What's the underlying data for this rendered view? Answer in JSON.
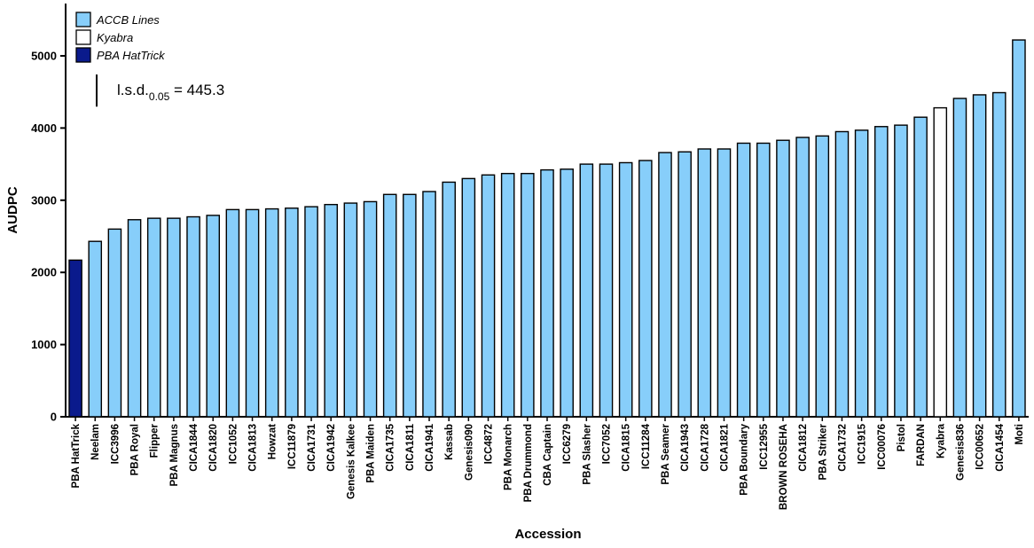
{
  "chart_data": {
    "type": "bar",
    "xlabel": "Accession",
    "ylabel": "AUDPC",
    "ylim": [
      0,
      5700
    ],
    "yticks": [
      0,
      1000,
      2000,
      3000,
      4000,
      5000
    ],
    "grid": false,
    "legend_position": "top-left",
    "categories": [
      "PBA HatTrick",
      "Neelam",
      "ICC3996",
      "PBA Royal",
      "Flipper",
      "PBA Magnus",
      "CICA1844",
      "CICA1820",
      "ICC1052",
      "CICA1813",
      "Howzat",
      "ICC11879",
      "CICA1731",
      "CICA1942",
      "Genesis Kalkee",
      "PBA Maiden",
      "CICA1735",
      "CICA1811",
      "CICA1941",
      "Kassab",
      "Genesis090",
      "ICC4872",
      "PBA Monarch",
      "PBA Drummond",
      "CBA Captain",
      "ICC6279",
      "PBA Slasher",
      "ICC7052",
      "CICA1815",
      "ICC11284",
      "PBA Seamer",
      "CICA1943",
      "CICA1728",
      "CICA1821",
      "PBA Boundary",
      "ICC12955",
      "BROWN ROSEHA",
      "CICA1812",
      "PBA Striker",
      "CICA1732",
      "ICC1915",
      "ICC00076",
      "Pistol",
      "FARDAN",
      "Kyabra",
      "Genesis836",
      "ICC00652",
      "CICA1454",
      "Moti"
    ],
    "values": [
      2170,
      2430,
      2600,
      2730,
      2750,
      2750,
      2770,
      2790,
      2870,
      2870,
      2880,
      2890,
      2910,
      2940,
      2960,
      2980,
      3080,
      3080,
      3120,
      3250,
      3300,
      3350,
      3370,
      3370,
      3420,
      3430,
      3500,
      3500,
      3520,
      3550,
      3660,
      3670,
      3710,
      3710,
      3790,
      3790,
      3830,
      3870,
      3890,
      3950,
      3970,
      4020,
      4040,
      4150,
      4280,
      4410,
      4460,
      4490,
      5220
    ],
    "groups": [
      "PBA HatTrick",
      "ACCB Lines",
      "ACCB Lines",
      "ACCB Lines",
      "ACCB Lines",
      "ACCB Lines",
      "ACCB Lines",
      "ACCB Lines",
      "ACCB Lines",
      "ACCB Lines",
      "ACCB Lines",
      "ACCB Lines",
      "ACCB Lines",
      "ACCB Lines",
      "ACCB Lines",
      "ACCB Lines",
      "ACCB Lines",
      "ACCB Lines",
      "ACCB Lines",
      "ACCB Lines",
      "ACCB Lines",
      "ACCB Lines",
      "ACCB Lines",
      "ACCB Lines",
      "ACCB Lines",
      "ACCB Lines",
      "ACCB Lines",
      "ACCB Lines",
      "ACCB Lines",
      "ACCB Lines",
      "ACCB Lines",
      "ACCB Lines",
      "ACCB Lines",
      "ACCB Lines",
      "ACCB Lines",
      "ACCB Lines",
      "ACCB Lines",
      "ACCB Lines",
      "ACCB Lines",
      "ACCB Lines",
      "ACCB Lines",
      "ACCB Lines",
      "ACCB Lines",
      "ACCB Lines",
      "Kyabra",
      "ACCB Lines",
      "ACCB Lines",
      "ACCB Lines",
      "ACCB Lines"
    ],
    "legend": [
      {
        "name": "ACCB Lines",
        "color": "#87cefa"
      },
      {
        "name": "Kyabra",
        "color": "#ffffff"
      },
      {
        "name": "PBA HatTrick",
        "color": "#0a1a8c"
      }
    ],
    "annotation": {
      "prefix": "l.s.d.",
      "subscript": "0.05",
      "suffix": " = 445.3",
      "lsd_value": 445.3
    }
  }
}
